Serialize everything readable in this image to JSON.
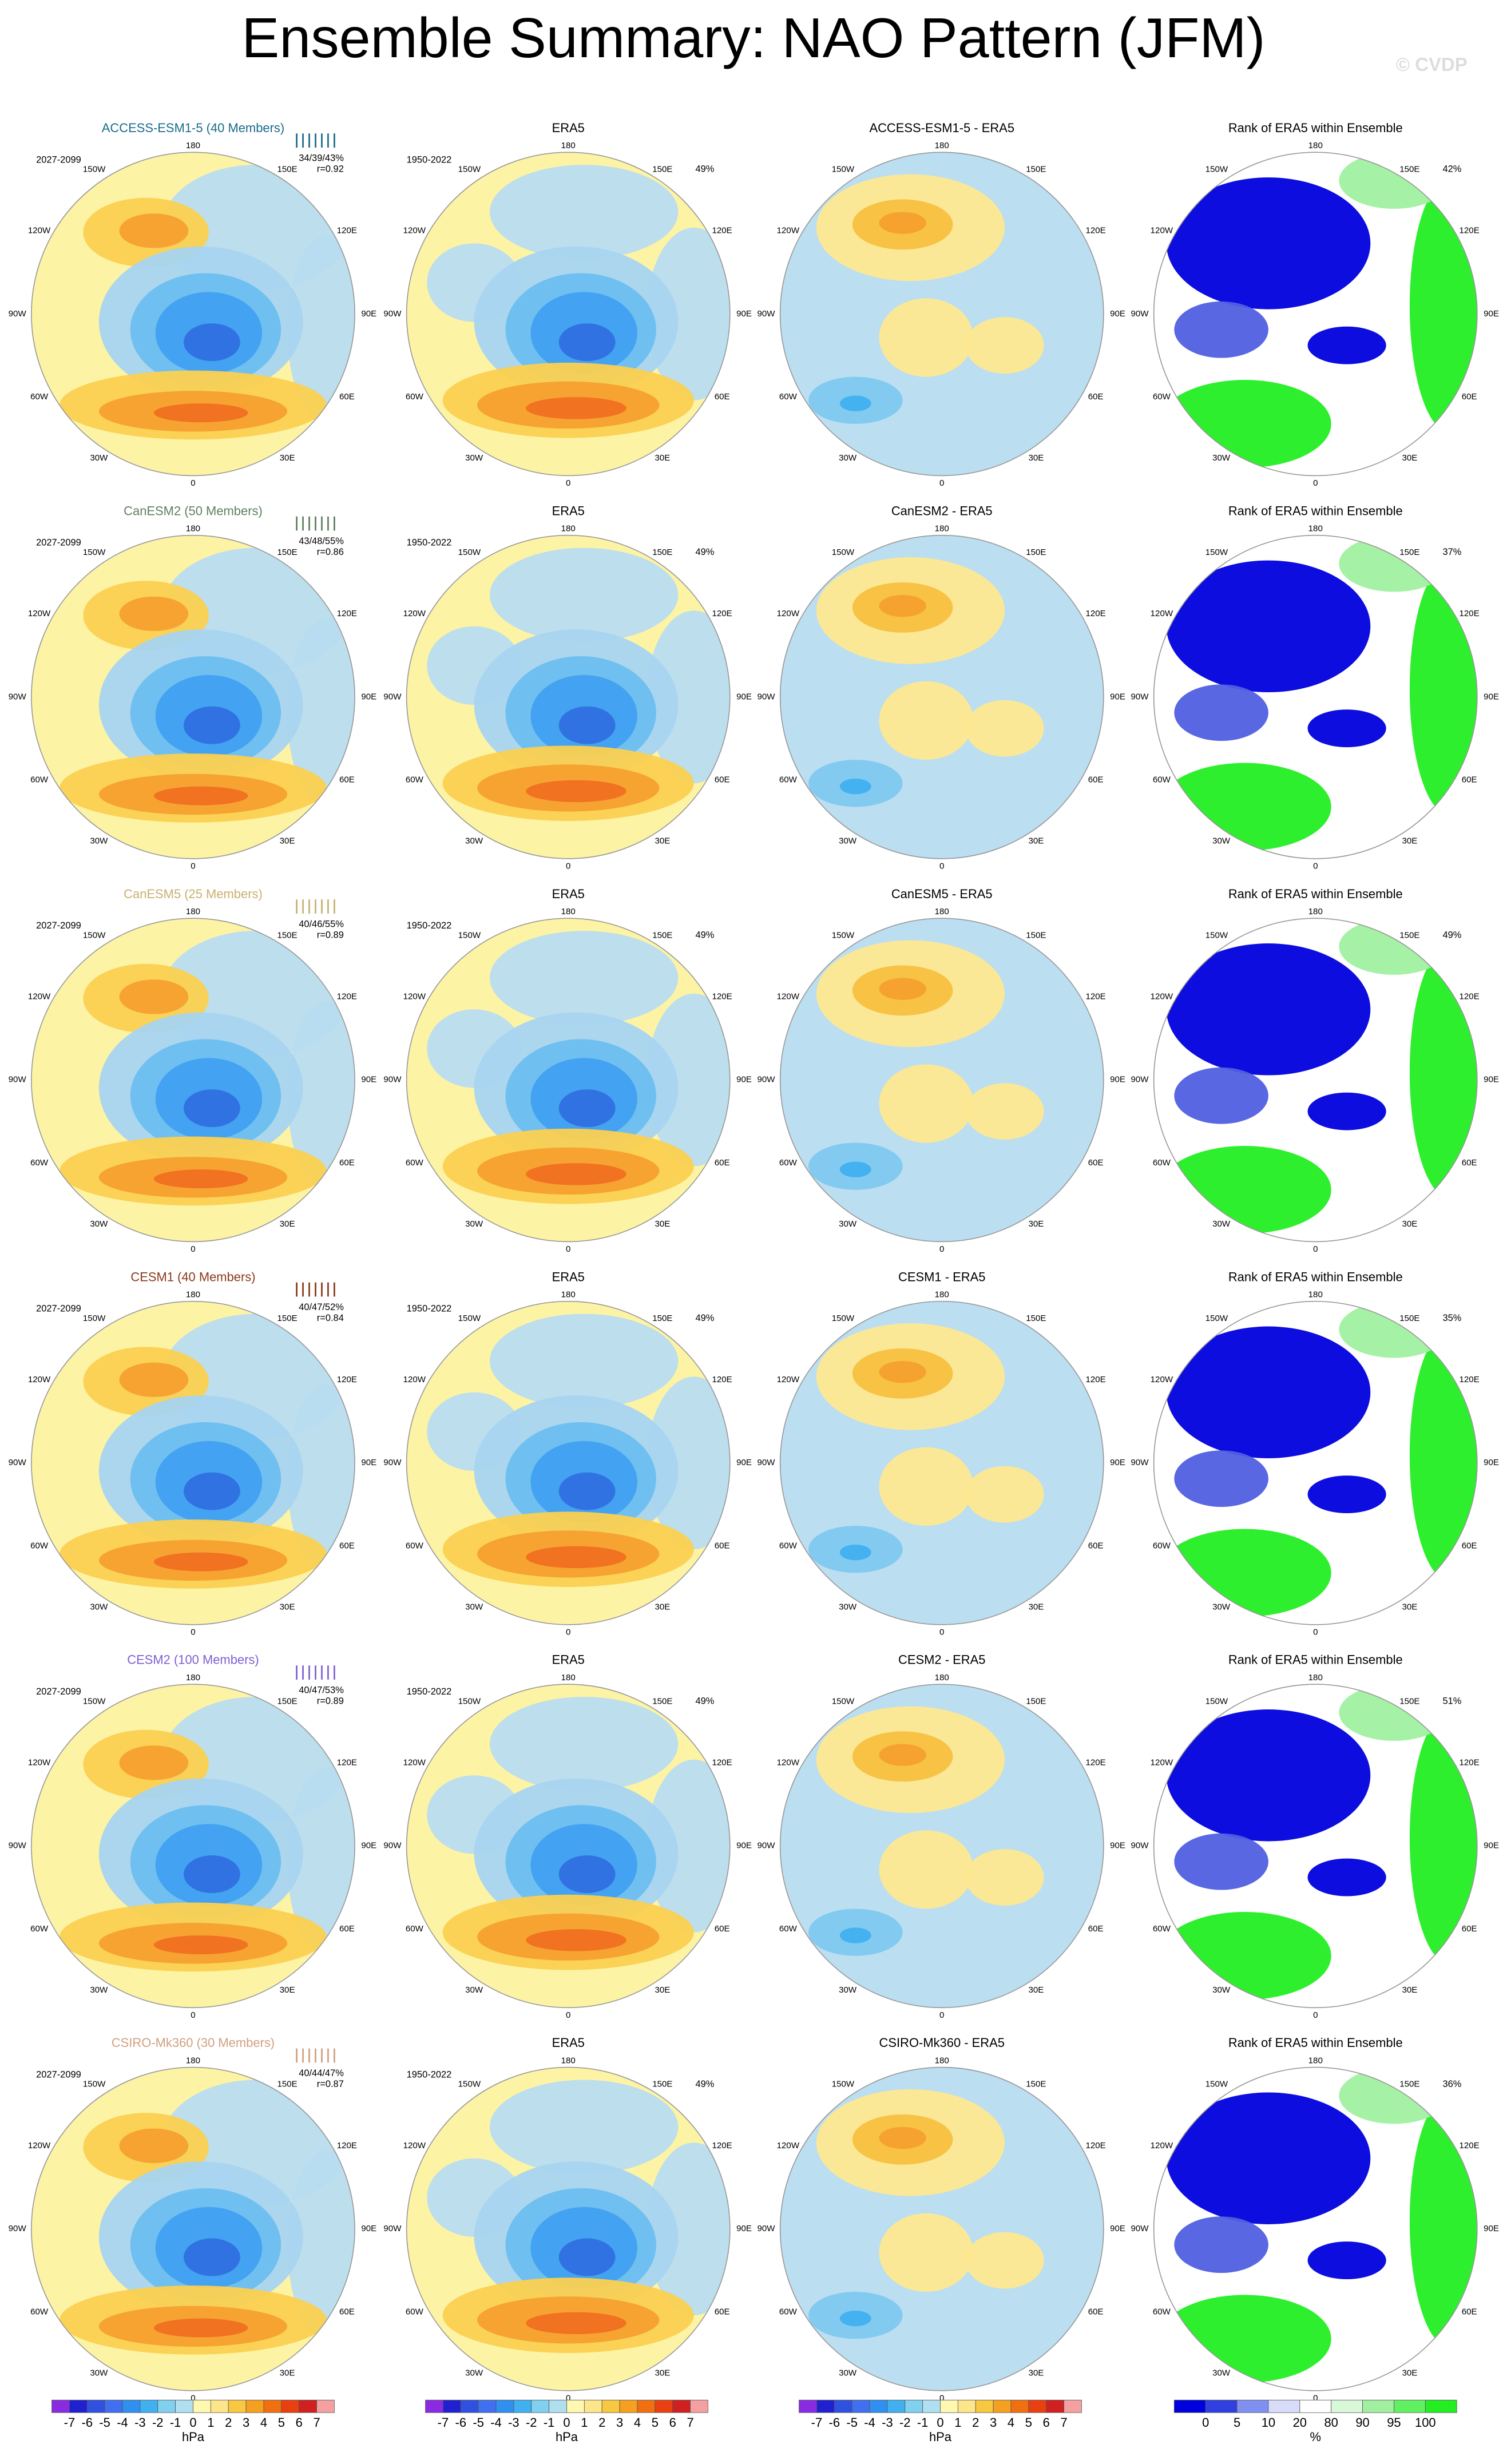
{
  "title": "Ensemble Summary: NAO Pattern (JFM)",
  "watermark": "© CVDP",
  "lon_labels": [
    "180",
    "150W",
    "150E",
    "120W",
    "120E",
    "90W",
    "90E",
    "60W",
    "60E",
    "30W",
    "30E",
    "0"
  ],
  "rows": [
    {
      "model": "ACCESS-ESM1-5 (40 Members)",
      "period": "2027-2099",
      "stats": "34/39/43%",
      "corr": "r=0.92",
      "obs_title": "ERA5",
      "obs_period": "1950-2022",
      "obs_stat": "49%",
      "diff_title": "ACCESS-ESM1-5 - ERA5",
      "rank_title": "Rank of ERA5 within Ensemble",
      "rank_stat": "42%"
    },
    {
      "model": "CanESM2 (50 Members)",
      "period": "2027-2099",
      "stats": "43/48/55%",
      "corr": "r=0.86",
      "obs_title": "ERA5",
      "obs_period": "1950-2022",
      "obs_stat": "49%",
      "diff_title": "CanESM2 - ERA5",
      "rank_title": "Rank of ERA5 within Ensemble",
      "rank_stat": "37%"
    },
    {
      "model": "CanESM5 (25 Members)",
      "period": "2027-2099",
      "stats": "40/46/55%",
      "corr": "r=0.89",
      "obs_title": "ERA5",
      "obs_period": "1950-2022",
      "obs_stat": "49%",
      "diff_title": "CanESM5 - ERA5",
      "rank_title": "Rank of ERA5 within Ensemble",
      "rank_stat": "49%"
    },
    {
      "model": "CESM1 (40 Members)",
      "period": "2027-2099",
      "stats": "40/47/52%",
      "corr": "r=0.84",
      "obs_title": "ERA5",
      "obs_period": "1950-2022",
      "obs_stat": "49%",
      "diff_title": "CESM1 - ERA5",
      "rank_title": "Rank of ERA5 within Ensemble",
      "rank_stat": "35%"
    },
    {
      "model": "CESM2 (100 Members)",
      "period": "2027-2099",
      "stats": "40/47/53%",
      "corr": "r=0.89",
      "obs_title": "ERA5",
      "obs_period": "1950-2022",
      "obs_stat": "49%",
      "diff_title": "CESM2 - ERA5",
      "rank_title": "Rank of ERA5 within Ensemble",
      "rank_stat": "51%"
    },
    {
      "model": "CSIRO-Mk360 (30 Members)",
      "period": "2027-2099",
      "stats": "40/44/47%",
      "corr": "r=0.87",
      "obs_title": "ERA5",
      "obs_period": "1950-2022",
      "obs_stat": "49%",
      "diff_title": "CSIRO-Mk360 - ERA5",
      "rank_title": "Rank of ERA5 within Ensemble",
      "rank_stat": "36%"
    }
  ],
  "colorbars": {
    "hpa": {
      "labels": [
        -7,
        -6,
        -5,
        -4,
        -3,
        -2,
        -1,
        0,
        1,
        2,
        3,
        4,
        5,
        6,
        7
      ],
      "unit": "hPa"
    },
    "rank": {
      "labels": [
        0,
        5,
        10,
        20,
        80,
        90,
        95,
        100
      ],
      "unit": "%"
    }
  }
}
